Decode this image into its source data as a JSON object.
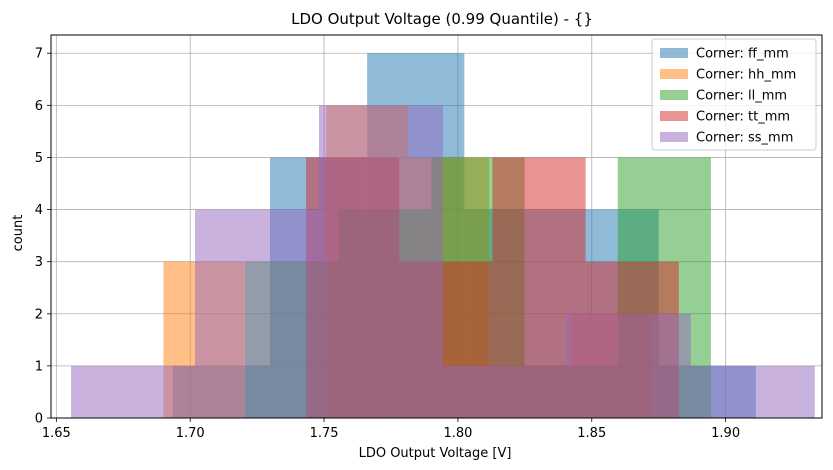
{
  "chart_data": {
    "type": "bar",
    "subtype": "histogram",
    "title": "LDO Output Voltage (0.99 Quantile) - {}",
    "xlabel": "LDO Output Voltage [V]",
    "ylabel": "count",
    "xlim": [
      1.648,
      1.936
    ],
    "ylim": [
      0,
      7.35
    ],
    "xticks": [
      1.65,
      1.7,
      1.75,
      1.8,
      1.85,
      1.9
    ],
    "xtick_labels": [
      "1.65",
      "1.70",
      "1.75",
      "1.80",
      "1.85",
      "1.90"
    ],
    "yticks": [
      0,
      1,
      2,
      3,
      4,
      5,
      6,
      7
    ],
    "ytick_labels": [
      "0",
      "1",
      "2",
      "3",
      "4",
      "5",
      "6",
      "7"
    ],
    "grid": true,
    "legend_position": "upper right",
    "alpha": 0.5,
    "series": [
      {
        "name": "Corner: ff_mm",
        "color": "#1f77b4",
        "bin_edges": [
          1.6935,
          1.7298,
          1.7661,
          1.8024,
          1.8387,
          1.875,
          1.9113
        ],
        "counts": [
          1,
          5,
          7,
          4,
          4,
          1
        ]
      },
      {
        "name": "Corner: hh_mm",
        "color": "#ff7f0e",
        "bin_edges": [
          1.69,
          1.7204,
          1.7508,
          1.7812,
          1.8116,
          1.842,
          1.8724
        ],
        "counts": [
          3,
          0,
          6,
          5,
          1,
          2
        ]
      },
      {
        "name": "Corner: ll_mm",
        "color": "#2ca02c",
        "bin_edges": [
          1.7205,
          1.7553,
          1.7901,
          1.8249,
          1.8597,
          1.8945
        ],
        "counts": [
          3,
          4,
          5,
          1,
          5
        ]
      },
      {
        "name": "Corner: tt_mm",
        "color": "#d62728",
        "bin_edges": [
          1.7433,
          1.7781,
          1.8129,
          1.8477,
          1.8825
        ],
        "counts": [
          5,
          3,
          5,
          3
        ]
      },
      {
        "name": "Corner: ss_mm",
        "color": "#9467bd",
        "bin_edges": [
          1.6555,
          1.7018,
          1.7481,
          1.7944,
          1.8407,
          1.887,
          1.9333
        ],
        "counts": [
          1,
          4,
          6,
          1,
          2,
          1
        ]
      }
    ]
  }
}
